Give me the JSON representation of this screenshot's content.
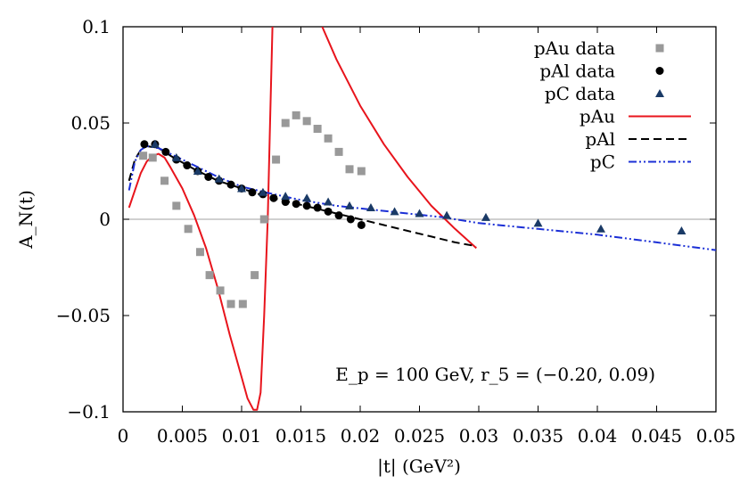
{
  "chart_data": {
    "type": "line",
    "title": "",
    "xlabel": "|t| (GeV²)",
    "ylabel": "A_N(t)",
    "xlim": [
      0,
      0.05
    ],
    "ylim": [
      -0.1,
      0.1
    ],
    "x_ticks": [
      "0",
      "0.005",
      "0.01",
      "0.015",
      "0.02",
      "0.025",
      "0.03",
      "0.035",
      "0.04",
      "0.045",
      "0.05"
    ],
    "y_ticks": [
      "−0.1",
      "−0.05",
      "0",
      "0.05",
      "0.1"
    ],
    "annotation": "E_p = 100 GeV, r_5 = (−0.20, 0.09)",
    "legend_position": "top-right",
    "series": [
      {
        "name": "pAu data",
        "kind": "scatter",
        "marker": "square",
        "color": "#999999",
        "points": [
          [
            0.0017,
            0.033
          ],
          [
            0.0025,
            0.032
          ],
          [
            0.0035,
            0.02
          ],
          [
            0.0045,
            0.007
          ],
          [
            0.0055,
            -0.005
          ],
          [
            0.0065,
            -0.017
          ],
          [
            0.0073,
            -0.029
          ],
          [
            0.0082,
            -0.037
          ],
          [
            0.0091,
            -0.044
          ],
          [
            0.0101,
            -0.044
          ],
          [
            0.0111,
            -0.029
          ],
          [
            0.0119,
            0.0
          ],
          [
            0.0129,
            0.031
          ],
          [
            0.0137,
            0.05
          ],
          [
            0.0146,
            0.054
          ],
          [
            0.0155,
            0.051
          ],
          [
            0.0164,
            0.047
          ],
          [
            0.0173,
            0.042
          ],
          [
            0.0182,
            0.035
          ],
          [
            0.0191,
            0.026
          ],
          [
            0.0201,
            0.025
          ]
        ]
      },
      {
        "name": "pAl data",
        "kind": "scatter",
        "marker": "circle",
        "color": "#000000",
        "points": [
          [
            0.0018,
            0.039
          ],
          [
            0.0027,
            0.039
          ],
          [
            0.0036,
            0.035
          ],
          [
            0.0045,
            0.031
          ],
          [
            0.0054,
            0.028
          ],
          [
            0.0063,
            0.025
          ],
          [
            0.0072,
            0.022
          ],
          [
            0.0081,
            0.02
          ],
          [
            0.0091,
            0.018
          ],
          [
            0.01,
            0.016
          ],
          [
            0.0109,
            0.014
          ],
          [
            0.0118,
            0.013
          ],
          [
            0.0127,
            0.011
          ],
          [
            0.0137,
            0.009
          ],
          [
            0.0146,
            0.008
          ],
          [
            0.0155,
            0.007
          ],
          [
            0.0164,
            0.006
          ],
          [
            0.0173,
            0.004
          ],
          [
            0.0182,
            0.002
          ],
          [
            0.0192,
            0.0
          ],
          [
            0.0201,
            -0.003
          ]
        ]
      },
      {
        "name": "pC data",
        "kind": "scatter",
        "marker": "triangle",
        "color": "#1a3a66",
        "points": [
          [
            0.0027,
            0.039
          ],
          [
            0.0045,
            0.032
          ],
          [
            0.0063,
            0.025
          ],
          [
            0.0081,
            0.021
          ],
          [
            0.01,
            0.016
          ],
          [
            0.0118,
            0.014
          ],
          [
            0.0137,
            0.012
          ],
          [
            0.0155,
            0.011
          ],
          [
            0.0173,
            0.009
          ],
          [
            0.0191,
            0.007
          ],
          [
            0.0209,
            0.006
          ],
          [
            0.0229,
            0.004
          ],
          [
            0.025,
            0.003
          ],
          [
            0.0273,
            0.002
          ],
          [
            0.0306,
            0.001
          ],
          [
            0.035,
            -0.002
          ],
          [
            0.0403,
            -0.005
          ],
          [
            0.0471,
            -0.006
          ]
        ]
      },
      {
        "name": "pAu",
        "kind": "line",
        "style": "solid",
        "color": "#e8141c",
        "points": [
          [
            0.0005,
            0.006
          ],
          [
            0.001,
            0.015
          ],
          [
            0.0015,
            0.024
          ],
          [
            0.002,
            0.03
          ],
          [
            0.0025,
            0.033
          ],
          [
            0.003,
            0.034
          ],
          [
            0.0035,
            0.032
          ],
          [
            0.004,
            0.027
          ],
          [
            0.005,
            0.016
          ],
          [
            0.006,
            0.002
          ],
          [
            0.007,
            -0.015
          ],
          [
            0.008,
            -0.036
          ],
          [
            0.009,
            -0.06
          ],
          [
            0.01,
            -0.082
          ],
          [
            0.0105,
            -0.093
          ],
          [
            0.011,
            -0.099
          ],
          [
            0.0113,
            -0.099
          ],
          [
            0.0116,
            -0.09
          ],
          [
            0.0119,
            -0.05
          ],
          [
            0.0122,
            0.0
          ],
          [
            0.0124,
            0.05
          ],
          [
            0.0126,
            0.1
          ]
        ]
      },
      {
        "name": "pAu",
        "kind": "line",
        "style": "solid",
        "color": "#e8141c",
        "continuation": true,
        "points": [
          [
            0.0168,
            0.1
          ],
          [
            0.018,
            0.083
          ],
          [
            0.02,
            0.059
          ],
          [
            0.022,
            0.039
          ],
          [
            0.024,
            0.022
          ],
          [
            0.026,
            0.007
          ],
          [
            0.028,
            -0.005
          ],
          [
            0.0298,
            -0.015
          ]
        ]
      },
      {
        "name": "pAl",
        "kind": "line",
        "style": "dashed",
        "color": "#000000",
        "points": [
          [
            0.0005,
            0.02
          ],
          [
            0.001,
            0.031
          ],
          [
            0.0015,
            0.036
          ],
          [
            0.002,
            0.038
          ],
          [
            0.003,
            0.037
          ],
          [
            0.004,
            0.033
          ],
          [
            0.006,
            0.026
          ],
          [
            0.008,
            0.02
          ],
          [
            0.01,
            0.016
          ],
          [
            0.012,
            0.012
          ],
          [
            0.014,
            0.009
          ],
          [
            0.016,
            0.006
          ],
          [
            0.018,
            0.003
          ],
          [
            0.02,
            0.0
          ],
          [
            0.022,
            -0.003
          ],
          [
            0.024,
            -0.006
          ],
          [
            0.026,
            -0.009
          ],
          [
            0.028,
            -0.012
          ],
          [
            0.0298,
            -0.014
          ]
        ]
      },
      {
        "name": "pC",
        "kind": "line",
        "style": "dash-dot-dot",
        "color": "#1b2fd6",
        "points": [
          [
            0.0005,
            0.015
          ],
          [
            0.001,
            0.03
          ],
          [
            0.0015,
            0.036
          ],
          [
            0.002,
            0.038
          ],
          [
            0.003,
            0.037
          ],
          [
            0.004,
            0.034
          ],
          [
            0.006,
            0.028
          ],
          [
            0.008,
            0.022
          ],
          [
            0.01,
            0.017
          ],
          [
            0.012,
            0.014
          ],
          [
            0.015,
            0.01
          ],
          [
            0.018,
            0.007
          ],
          [
            0.021,
            0.005
          ],
          [
            0.024,
            0.003
          ],
          [
            0.027,
            0.001
          ],
          [
            0.03,
            -0.002
          ],
          [
            0.035,
            -0.005
          ],
          [
            0.04,
            -0.008
          ],
          [
            0.045,
            -0.012
          ],
          [
            0.05,
            -0.016
          ]
        ]
      }
    ]
  }
}
